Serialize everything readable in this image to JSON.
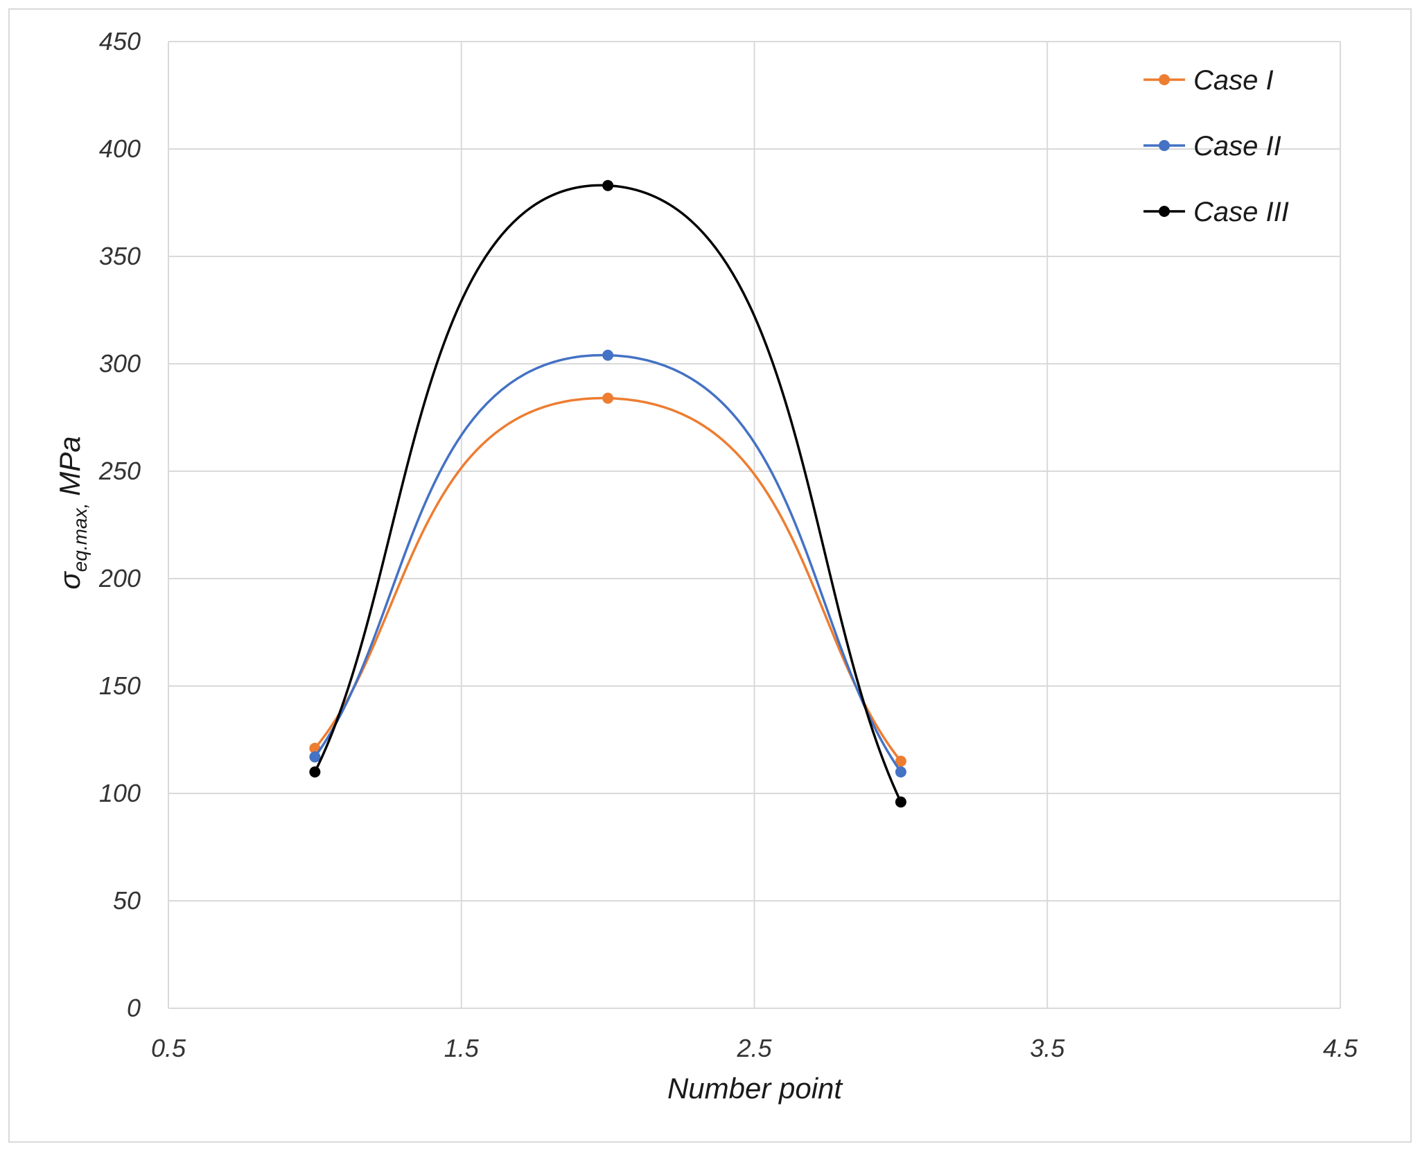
{
  "chart_data": {
    "type": "line",
    "smooth": true,
    "xlabel": "Number point",
    "ylabel_symbol": "σ",
    "ylabel_subscript": "eq.max,",
    "ylabel_unit": "MPa",
    "xlim": [
      0.5,
      4.5
    ],
    "ylim": [
      0,
      450
    ],
    "x_ticks": [
      "0.5",
      "1.5",
      "2.5",
      "3.5",
      "4.5"
    ],
    "y_ticks": [
      "0",
      "50",
      "100",
      "150",
      "200",
      "250",
      "300",
      "350",
      "400",
      "450"
    ],
    "grid": true,
    "legend_position": "top-right",
    "x": [
      1,
      2,
      3
    ],
    "series": [
      {
        "name": "Case I",
        "color": "#ED7D31",
        "values": [
          121,
          284,
          115
        ]
      },
      {
        "name": "Case II",
        "color": "#4472C4",
        "values": [
          117,
          304,
          110
        ]
      },
      {
        "name": "Case III",
        "color": "#000000",
        "values": [
          110,
          383,
          96
        ]
      }
    ]
  }
}
